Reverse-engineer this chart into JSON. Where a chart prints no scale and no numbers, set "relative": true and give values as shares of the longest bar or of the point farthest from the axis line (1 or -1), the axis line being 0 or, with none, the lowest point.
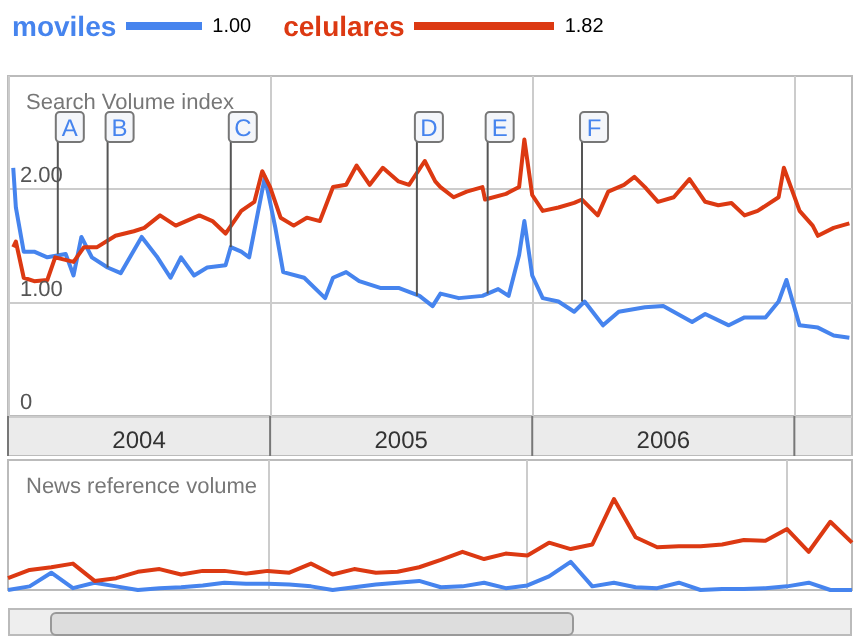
{
  "chart_data": [
    {
      "type": "line",
      "title": "Search Volume index",
      "legend": "top left",
      "grid": true,
      "xlim": [
        2004,
        2007.22
      ],
      "xticks": [
        {
          "value": 2004,
          "label": null
        },
        {
          "value": 2004.5,
          "label": "2004"
        },
        {
          "value": 2005,
          "label": null
        },
        {
          "value": 2005.5,
          "label": "2005"
        },
        {
          "value": 2006,
          "label": null
        },
        {
          "value": 2006.5,
          "label": "2006"
        },
        {
          "value": 2007,
          "label": null
        }
      ],
      "ylim": [
        0,
        3
      ],
      "yticks": [
        0,
        {
          "value": 1,
          "label": "1.00"
        },
        {
          "value": 2,
          "label": "2.00"
        }
      ],
      "annotations": [
        "1.00",
        "1.82",
        {
          "text": "A",
          "x": 2004.19,
          "y": 1.43
        },
        {
          "text": "B",
          "x": 2004.38,
          "y": 1.31
        },
        {
          "text": "C",
          "x": 2004.85,
          "y": 1.49
        },
        {
          "text": "D",
          "x": 2005.56,
          "y": 1.06
        },
        {
          "text": "E",
          "x": 2005.83,
          "y": 1.08
        },
        {
          "text": "F",
          "x": 2006.19,
          "y": 1.01
        }
      ],
      "series": [
        {
          "name": "moviles",
          "color": "#4684ee",
          "x": [
            2004.02,
            2004.03,
            2004.06,
            2004.1,
            2004.15,
            2004.22,
            2004.25,
            2004.28,
            2004.32,
            2004.38,
            2004.43,
            2004.51,
            2004.57,
            2004.62,
            2004.66,
            2004.71,
            2004.76,
            2004.83,
            2004.85,
            2004.89,
            2004.92,
            2004.98,
            2005.02,
            2005.05,
            2005.13,
            2005.21,
            2005.24,
            2005.29,
            2005.34,
            2005.42,
            2005.49,
            2005.57,
            2005.62,
            2005.65,
            2005.72,
            2005.81,
            2005.87,
            2005.91,
            2005.95,
            2005.97,
            2006,
            2006.04,
            2006.1,
            2006.16,
            2006.2,
            2006.27,
            2006.33,
            2006.43,
            2006.5,
            2006.61,
            2006.66,
            2006.75,
            2006.81,
            2006.89,
            2006.94,
            2006.97,
            2007.02,
            2007.09,
            2007.15,
            2007.21
          ],
          "values": [
            2.19,
            1.84,
            1.45,
            1.45,
            1.4,
            1.43,
            1.24,
            1.58,
            1.4,
            1.31,
            1.26,
            1.58,
            1.4,
            1.22,
            1.4,
            1.24,
            1.31,
            1.33,
            1.49,
            1.45,
            1.4,
            2.11,
            1.66,
            1.27,
            1.22,
            1.04,
            1.22,
            1.27,
            1.19,
            1.13,
            1.13,
            1.06,
            0.97,
            1.08,
            1.04,
            1.06,
            1.12,
            1.06,
            1.42,
            1.72,
            1.24,
            1.04,
            1.01,
            0.92,
            1.01,
            0.8,
            0.92,
            0.96,
            0.97,
            0.83,
            0.9,
            0.8,
            0.87,
            0.87,
            1.01,
            1.2,
            0.8,
            0.78,
            0.71,
            0.69
          ]
        },
        {
          "name": "celulares",
          "color": "#dc3912",
          "x": [
            2004.02,
            2004.03,
            2004.06,
            2004.1,
            2004.15,
            2004.18,
            2004.25,
            2004.29,
            2004.34,
            2004.41,
            2004.48,
            2004.52,
            2004.58,
            2004.64,
            2004.73,
            2004.78,
            2004.83,
            2004.89,
            2004.94,
            2004.97,
            2005,
            2005.04,
            2005.09,
            2005.14,
            2005.19,
            2005.24,
            2005.29,
            2005.33,
            2005.38,
            2005.43,
            2005.49,
            2005.53,
            2005.59,
            2005.63,
            2005.65,
            2005.7,
            2005.75,
            2005.81,
            2005.82,
            2005.9,
            2005.95,
            2005.97,
            2006,
            2006.04,
            2006.1,
            2006.16,
            2006.19,
            2006.25,
            2006.29,
            2006.35,
            2006.39,
            2006.43,
            2006.48,
            2006.54,
            2006.6,
            2006.66,
            2006.71,
            2006.76,
            2006.81,
            2006.86,
            2006.94,
            2006.96,
            2007.02,
            2007.07,
            2007.09,
            2007.15,
            2007.21
          ],
          "values": [
            1.49,
            1.54,
            1.22,
            1.19,
            1.2,
            1.4,
            1.36,
            1.49,
            1.49,
            1.59,
            1.63,
            1.66,
            1.77,
            1.68,
            1.77,
            1.72,
            1.61,
            1.81,
            1.89,
            2.16,
            2.02,
            1.75,
            1.68,
            1.75,
            1.72,
            2.02,
            2.04,
            2.21,
            2.04,
            2.19,
            2.07,
            2.04,
            2.25,
            2.07,
            2.02,
            1.93,
            1.98,
            2.02,
            1.91,
            1.96,
            2.02,
            2.44,
            1.95,
            1.81,
            1.84,
            1.88,
            1.91,
            1.77,
            1.98,
            2.04,
            2.11,
            2.02,
            1.89,
            1.93,
            2.09,
            1.89,
            1.86,
            1.88,
            1.77,
            1.81,
            1.93,
            2.19,
            1.81,
            1.68,
            1.59,
            1.66,
            1.7
          ]
        }
      ]
    },
    {
      "type": "line",
      "title": "News reference volume",
      "relative": true,
      "grid": "x",
      "categories": [
        null,
        null,
        null,
        null,
        null,
        null,
        null,
        null,
        null,
        null,
        null,
        null,
        null,
        null,
        null,
        null,
        null,
        null,
        null,
        null,
        null,
        null,
        null,
        null,
        null,
        null,
        null,
        null,
        null,
        null,
        null,
        null,
        null,
        null,
        null,
        null,
        null,
        null,
        null,
        null
      ],
      "series": [
        {
          "color": "#4684ee",
          "values": [
            0,
            0.04,
            0.19,
            0.02,
            0.08,
            0.04,
            0,
            0.02,
            0.03,
            0.05,
            0.08,
            0.07,
            0.07,
            0.06,
            0.04,
            0,
            0.03,
            0.06,
            0.08,
            0.1,
            0.03,
            0.04,
            0.08,
            0.02,
            0.05,
            0.15,
            0.31,
            0.04,
            0.08,
            0.03,
            0.02,
            0.08,
            0,
            0.01,
            0.01,
            0.02,
            0.04,
            0.08,
            0,
            0
          ]
        },
        {
          "color": "#dc3912",
          "values": [
            0.13,
            0.22,
            0.25,
            0.29,
            0.1,
            0.13,
            0.2,
            0.23,
            0.17,
            0.21,
            0.21,
            0.18,
            0.21,
            0.19,
            0.29,
            0.17,
            0.23,
            0.19,
            0.2,
            0.25,
            0.33,
            0.42,
            0.34,
            0.4,
            0.38,
            0.52,
            0.45,
            0.5,
            1,
            0.58,
            0.47,
            0.48,
            0.48,
            0.5,
            0.55,
            0.54,
            0.67,
            0.42,
            0.75,
            0.52
          ]
        }
      ]
    }
  ]
}
